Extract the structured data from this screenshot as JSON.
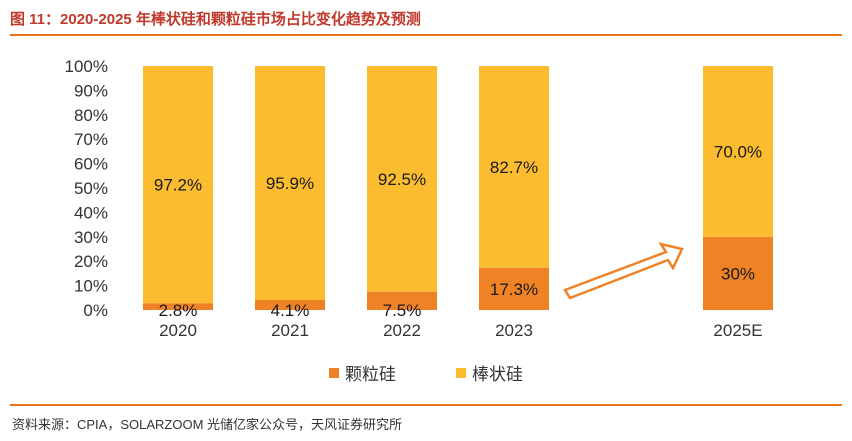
{
  "header": {
    "title": "图 11：2020-2025 年棒状硅和颗粒硅市场占比变化趋势及预测"
  },
  "source": "资料来源：CPIA，SOLARZOOM 光储亿家公众号，天风证券研究所",
  "colors": {
    "granular": "#f08226",
    "rod": "#fbbd2f",
    "accent": "#e8731f",
    "title": "#c0392b"
  },
  "chart_data": {
    "type": "bar",
    "stacked": true,
    "title": "2020-2025 年棒状硅和颗粒硅市场占比变化趋势及预测",
    "categories": [
      "2020",
      "2021",
      "2022",
      "2023",
      "2025E"
    ],
    "series": [
      {
        "name": "颗粒硅",
        "values": [
          2.8,
          4.1,
          7.5,
          17.3,
          30
        ],
        "labels": [
          "2.8%",
          "4.1%",
          "7.5%",
          "17.3%",
          "30%"
        ]
      },
      {
        "name": "棒状硅",
        "values": [
          97.2,
          95.9,
          92.5,
          82.7,
          70.0
        ],
        "labels": [
          "97.2%",
          "95.9%",
          "92.5%",
          "82.7%",
          "70.0%"
        ]
      }
    ],
    "y_ticks": [
      "0%",
      "10%",
      "20%",
      "30%",
      "40%",
      "50%",
      "60%",
      "70%",
      "80%",
      "90%",
      "100%"
    ],
    "ylim": [
      0,
      100
    ],
    "xlabel": "",
    "ylabel": "",
    "legend_position": "bottom",
    "grid": false,
    "annotation": "arrow between 2023 and 2025E"
  }
}
